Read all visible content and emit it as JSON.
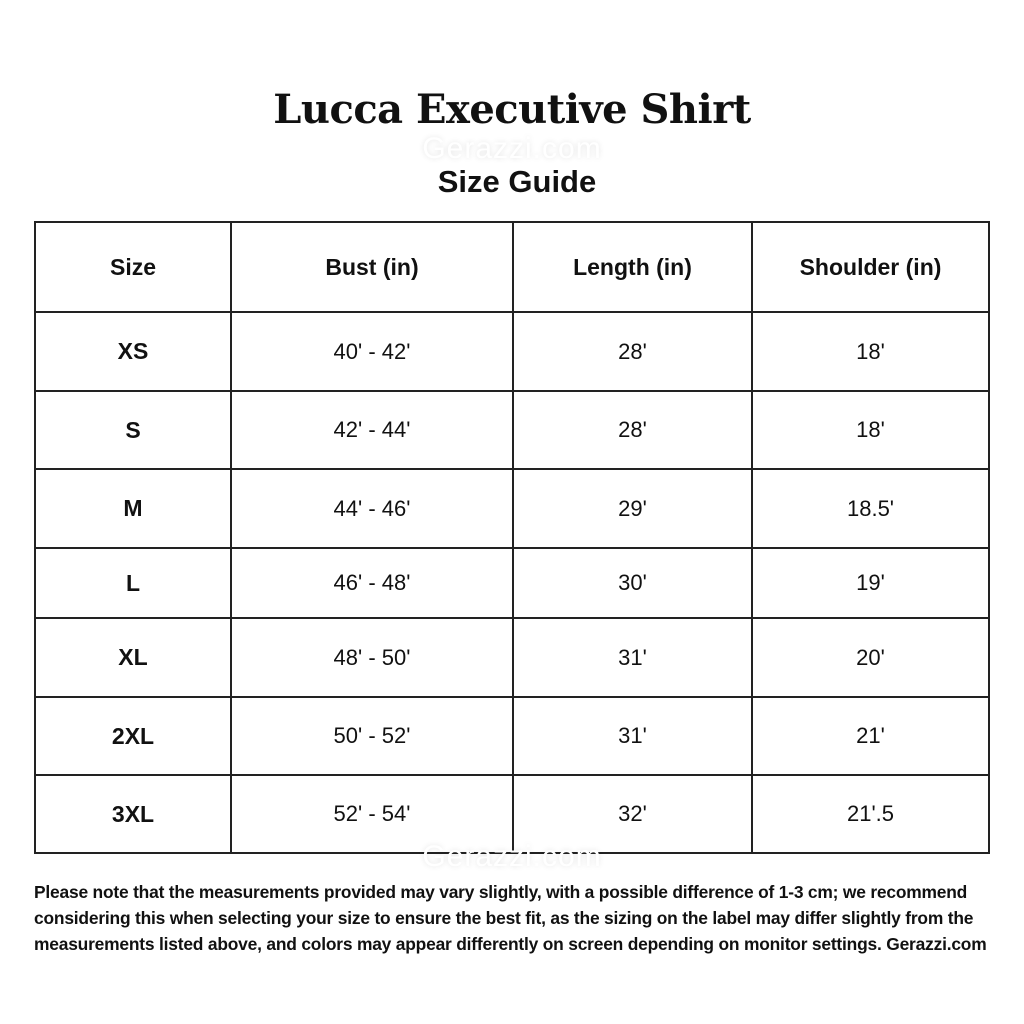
{
  "header": {
    "title": "Lucca Executive Shirt",
    "subtitle": "Size Guide"
  },
  "watermark": "Gerazzi.com",
  "table": {
    "columns": [
      "Size",
      "Bust (in)",
      "Length (in)",
      "Shoulder (in)"
    ],
    "rows": [
      [
        "XS",
        "40' - 42'",
        "28'",
        "18'"
      ],
      [
        "S",
        "42' - 44'",
        "28'",
        "18'"
      ],
      [
        "M",
        "44' - 46'",
        "29'",
        "18.5'"
      ],
      [
        "L",
        "46' - 48'",
        "30'",
        "19'"
      ],
      [
        "XL",
        "48' - 50'",
        "31'",
        "20'"
      ],
      [
        "2XL",
        "50' - 52'",
        "31'",
        "21'"
      ],
      [
        "3XL",
        "52' - 54'",
        "32'",
        "21'.5"
      ]
    ]
  },
  "note": "Please note that the measurements provided may vary slightly, with a possible difference of 1-3 cm; we recommend considering this when selecting your size to ensure the best fit, as the sizing on the label may differ slightly from the measurements listed above, and colors may appear differently on screen depending on monitor settings. Gerazzi.com"
}
